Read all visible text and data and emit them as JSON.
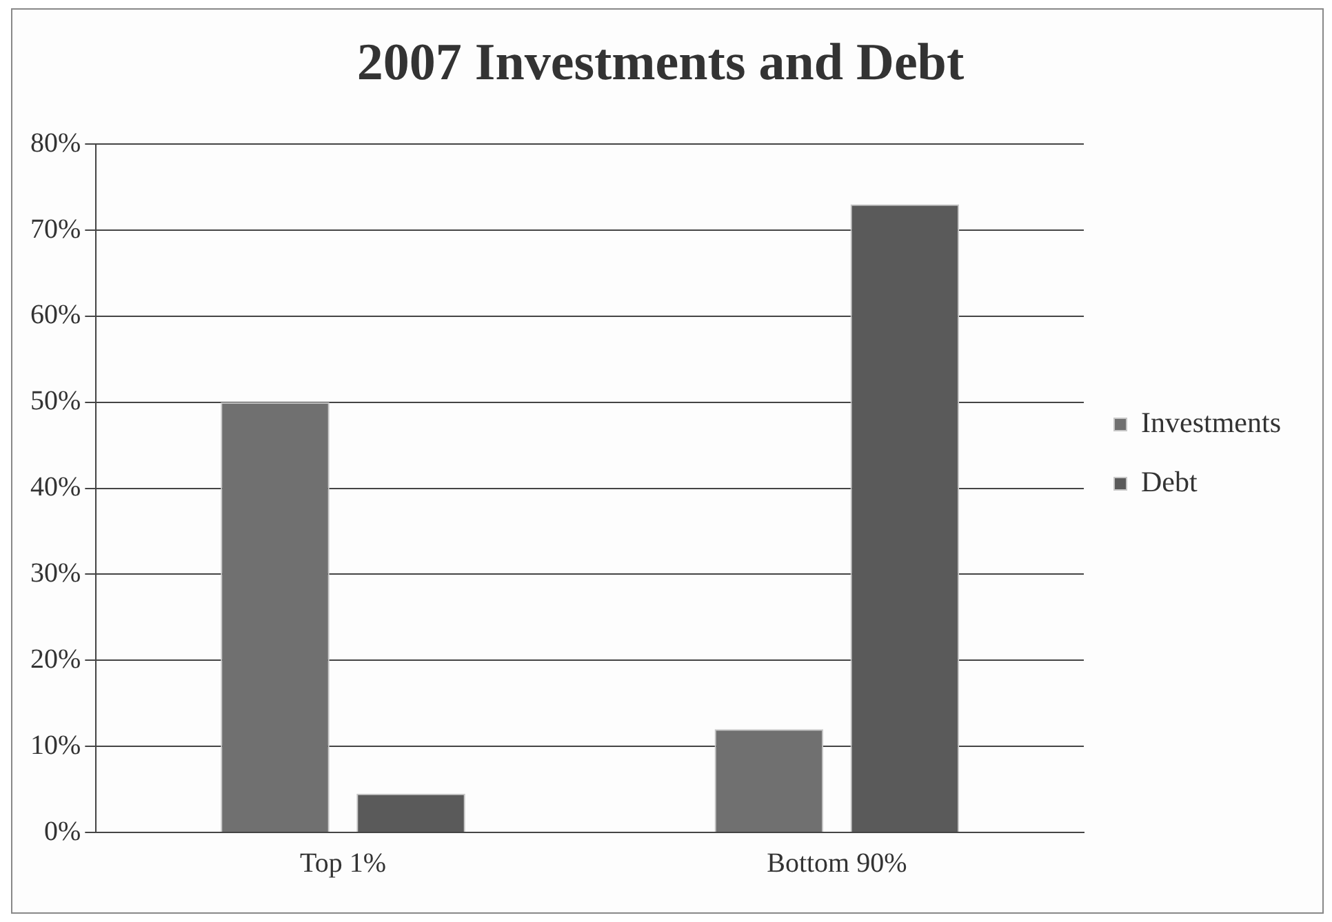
{
  "chart_data": {
    "type": "bar",
    "title": "2007 Investments and Debt",
    "categories": [
      "Top 1%",
      "Bottom 90%"
    ],
    "series": [
      {
        "name": "Investments",
        "color": "#707070",
        "values": [
          50,
          12
        ]
      },
      {
        "name": "Debt",
        "color": "#5a5a5a",
        "values": [
          4.5,
          73
        ]
      }
    ],
    "ylim": [
      0,
      80
    ],
    "yticks": [
      {
        "value": 0,
        "label": "0%"
      },
      {
        "value": 10,
        "label": "10%"
      },
      {
        "value": 20,
        "label": "20%"
      },
      {
        "value": 30,
        "label": "30%"
      },
      {
        "value": 40,
        "label": "40%"
      },
      {
        "value": 50,
        "label": "50%"
      },
      {
        "value": 60,
        "label": "60%"
      },
      {
        "value": 70,
        "label": "70%"
      },
      {
        "value": 80,
        "label": "80%"
      }
    ],
    "grid": "y",
    "legend": "right"
  }
}
